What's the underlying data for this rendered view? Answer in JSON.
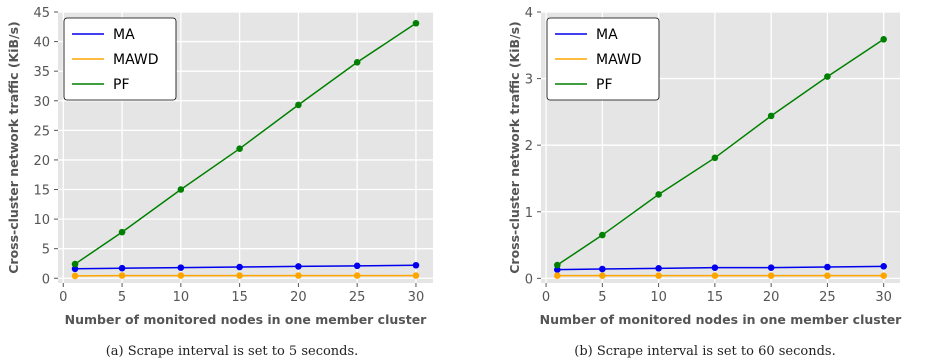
{
  "chart_data": [
    {
      "type": "line",
      "caption": "(a)  Scrape interval is set to 5 seconds.",
      "xlabel": "Number of monitored nodes in one member cluster",
      "ylabel": "Cross-cluster network traffic (KiB/s)",
      "x": [
        1,
        5,
        10,
        15,
        20,
        25,
        30
      ],
      "xticks": [
        0,
        5,
        10,
        15,
        20,
        25,
        30
      ],
      "yticks": [
        0,
        5,
        10,
        15,
        20,
        25,
        30,
        35,
        40,
        45
      ],
      "xlim": [
        -0.45,
        31.45
      ],
      "ylim": [
        -0.8,
        45
      ],
      "grid": true,
      "legend": "top-left",
      "series": [
        {
          "name": "MA",
          "color": "#0000ee",
          "values": [
            1.6,
            1.7,
            1.8,
            1.9,
            2.0,
            2.1,
            2.2
          ]
        },
        {
          "name": "MAWD",
          "color": "#ffa500",
          "values": [
            0.4,
            0.45,
            0.45,
            0.45,
            0.45,
            0.45,
            0.45
          ]
        },
        {
          "name": "PF",
          "color": "#008000",
          "values": [
            2.4,
            7.8,
            15.0,
            21.9,
            29.3,
            36.5,
            43.1
          ]
        }
      ]
    },
    {
      "type": "line",
      "caption": "(b)  Scrape interval is set to 60 seconds.",
      "xlabel": "Number of monitored nodes in one member cluster",
      "ylabel": "Cross-cluster network traffic (KiB/s)",
      "x": [
        1,
        5,
        10,
        15,
        20,
        25,
        30
      ],
      "xticks": [
        0,
        5,
        10,
        15,
        20,
        25,
        30
      ],
      "yticks": [
        0,
        1,
        2,
        3,
        4
      ],
      "xlim": [
        -0.45,
        31.45
      ],
      "ylim": [
        -0.07,
        4
      ],
      "grid": true,
      "legend": "top-left",
      "series": [
        {
          "name": "MA",
          "color": "#0000ee",
          "values": [
            0.13,
            0.14,
            0.15,
            0.16,
            0.16,
            0.17,
            0.18
          ]
        },
        {
          "name": "MAWD",
          "color": "#ffa500",
          "values": [
            0.04,
            0.04,
            0.04,
            0.04,
            0.04,
            0.04,
            0.04
          ]
        },
        {
          "name": "PF",
          "color": "#008000",
          "values": [
            0.2,
            0.65,
            1.26,
            1.81,
            2.44,
            3.03,
            3.59
          ]
        }
      ]
    }
  ]
}
